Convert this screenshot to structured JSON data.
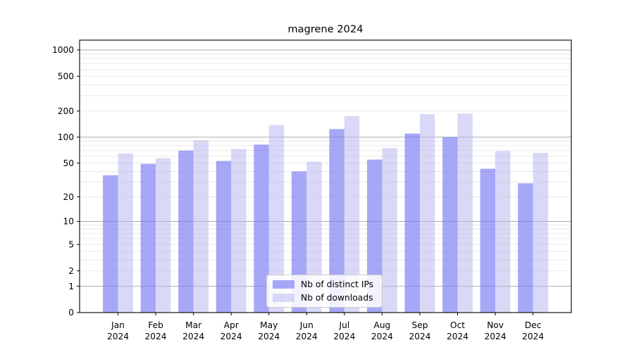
{
  "title": "magrene 2024",
  "chart_data": {
    "type": "bar",
    "title": "magrene 2024",
    "yscale": "log1p",
    "grid": "on",
    "yticks": [
      0,
      1,
      2,
      5,
      10,
      20,
      50,
      100,
      200,
      500,
      1000
    ],
    "ylim": [
      0,
      1295
    ],
    "categories": [
      "Jan",
      "Feb",
      "Mar",
      "Apr",
      "May",
      "Jun",
      "Jul",
      "Aug",
      "Sep",
      "Oct",
      "Nov",
      "Dec"
    ],
    "year_label": "2024",
    "legend_position": "lower-center-inside",
    "series": [
      {
        "name": "Nb of distinct IPs",
        "color": "#7d7df4",
        "alpha": 0.68,
        "values": [
          36,
          49,
          70,
          53,
          82,
          40,
          124,
          55,
          110,
          100,
          43,
          29
        ]
      },
      {
        "name": "Nb of downloads",
        "color": "#b7b7f0",
        "alpha": 0.52,
        "values": [
          65,
          57,
          92,
          73,
          138,
          52,
          175,
          75,
          184,
          187,
          69,
          66
        ]
      }
    ],
    "grid_major_color": "#ababab",
    "grid_minor_color": "#e8e8e8",
    "axis_color": "#000000"
  }
}
